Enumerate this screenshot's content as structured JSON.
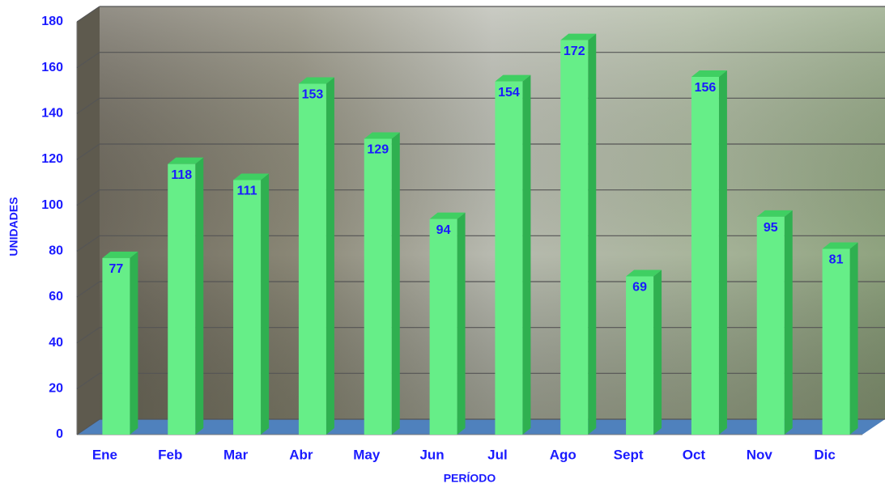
{
  "chart_data": {
    "type": "bar",
    "categories": [
      "Ene",
      "Feb",
      "Mar",
      "Abr",
      "May",
      "Jun",
      "Jul",
      "Ago",
      "Sept",
      "Oct",
      "Nov",
      "Dic"
    ],
    "values": [
      77,
      118,
      111,
      153,
      129,
      94,
      154,
      172,
      69,
      156,
      95,
      81
    ],
    "color": "#66ee88",
    "ylim": [
      0,
      180
    ],
    "yticks": [
      0,
      20,
      40,
      60,
      80,
      100,
      120,
      140,
      160,
      180
    ],
    "grid": true,
    "x_label": "PERÍODO",
    "y_label": "UNIDADES"
  }
}
